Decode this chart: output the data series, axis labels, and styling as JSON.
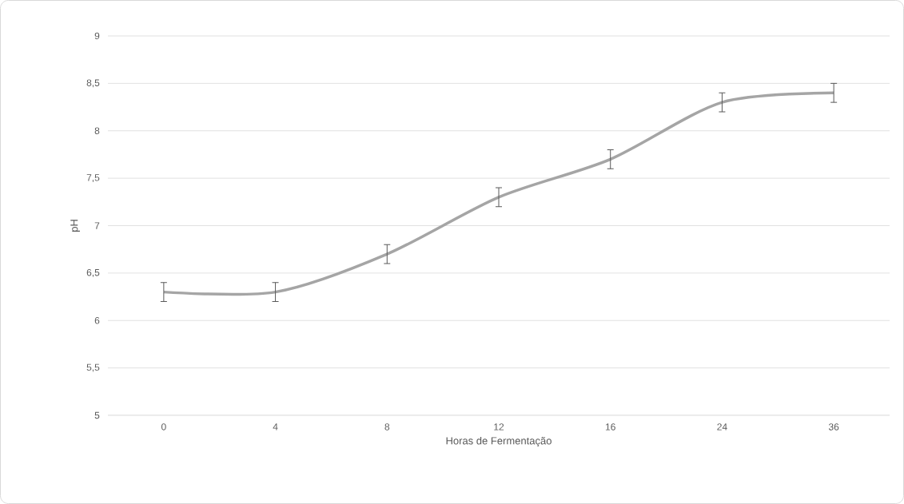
{
  "chart_data": {
    "type": "line",
    "xlabel": "Horas de Fermentação",
    "ylabel": "pH",
    "categories": [
      "0",
      "4",
      "8",
      "12",
      "16",
      "24",
      "36"
    ],
    "values": [
      6.3,
      6.3,
      6.7,
      7.3,
      7.7,
      8.3,
      8.4
    ],
    "errors": [
      0.1,
      0.1,
      0.1,
      0.1,
      0.1,
      0.1,
      0.1
    ],
    "color": "#a5a5a5",
    "ylim": [
      5,
      9
    ],
    "yticks": [
      5,
      {
        "value": 5.5,
        "label": "5,5"
      },
      6,
      {
        "value": 6.5,
        "label": "6,5"
      },
      7,
      {
        "value": 7.5,
        "label": "7,5"
      },
      8,
      {
        "value": 8.5,
        "label": "8,5"
      },
      9
    ],
    "grid": "y"
  }
}
